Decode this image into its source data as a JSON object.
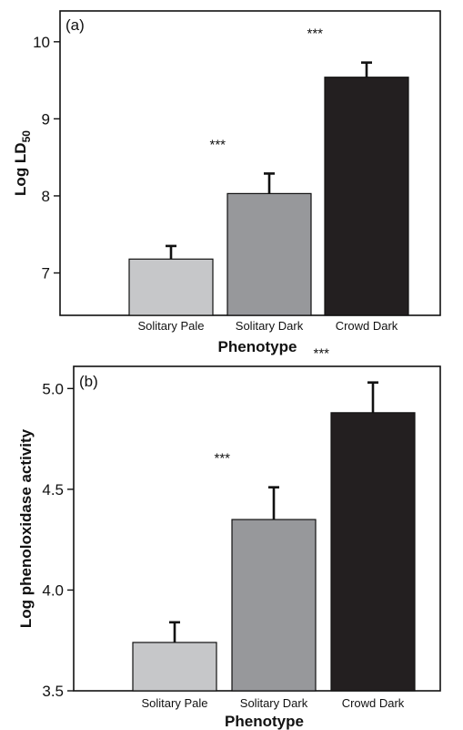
{
  "chart_data": [
    {
      "type": "bar",
      "panel_label": "(a)",
      "categories": [
        "Solitary Pale",
        "Solitary Dark",
        "Crowd Dark"
      ],
      "values": [
        7.18,
        8.03,
        9.54
      ],
      "errors": [
        0.17,
        0.26,
        0.19
      ],
      "bar_colors": [
        "#c6c7c9",
        "#97989b",
        "#231f20"
      ],
      "annotations": [
        "",
        "***",
        "***"
      ],
      "xlabel": "Phenotype",
      "ylabel": "Log LD",
      "ylabel_subscript": "50",
      "yticks": [
        7,
        8,
        9,
        10
      ],
      "ylim": [
        6.45,
        10.4
      ],
      "grid": false
    },
    {
      "type": "bar",
      "panel_label": "(b)",
      "categories": [
        "Solitary Pale",
        "Solitary Dark",
        "Crowd Dark"
      ],
      "values": [
        3.74,
        4.35,
        4.88
      ],
      "errors": [
        0.1,
        0.16,
        0.15
      ],
      "bar_colors": [
        "#c6c7c9",
        "#97989b",
        "#231f20"
      ],
      "annotations": [
        "",
        "***",
        "***"
      ],
      "xlabel": "Phenotype",
      "ylabel": "Log phenoloxidase activity",
      "yticks": [
        3.5,
        4.0,
        4.5,
        5.0
      ],
      "ytick_labels": [
        "3.5",
        "4.0",
        "4.5",
        "5.0"
      ],
      "ylim": [
        3.5,
        5.11
      ],
      "grid": false
    }
  ]
}
